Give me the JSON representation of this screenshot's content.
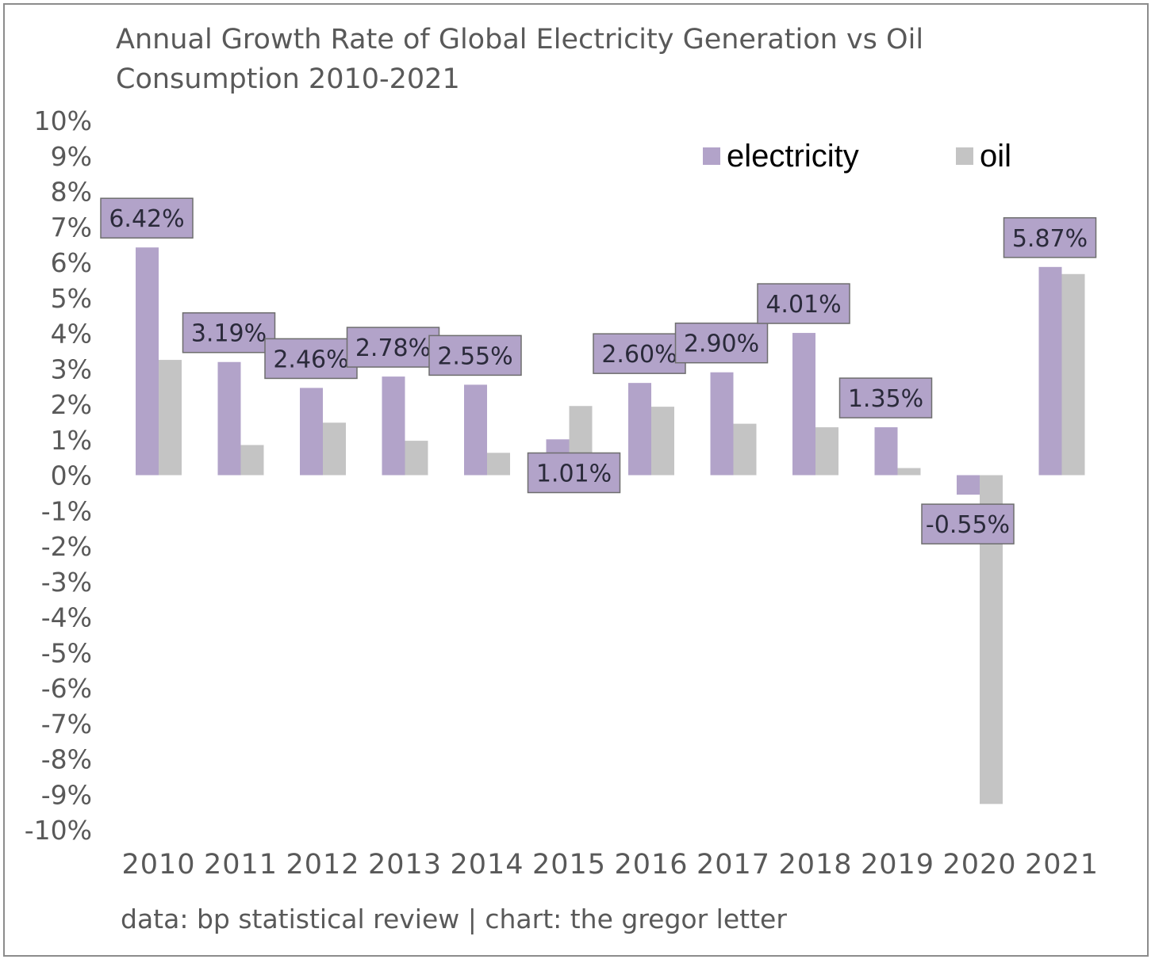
{
  "chart_data": {
    "type": "bar",
    "title_lines": [
      "Annual Growth Rate of Global Electricity Generation vs Oil",
      "Consumption 2010-2021"
    ],
    "source": "data: bp statistical review | chart: the gregor letter",
    "categories": [
      "2010",
      "2011",
      "2012",
      "2013",
      "2014",
      "2015",
      "2016",
      "2017",
      "2018",
      "2019",
      "2020",
      "2021"
    ],
    "series": [
      {
        "name": "electricity",
        "color": "#b2a3c9",
        "values": [
          6.42,
          3.19,
          2.46,
          2.78,
          2.55,
          1.01,
          2.6,
          2.9,
          4.01,
          1.35,
          -0.55,
          5.87
        ],
        "data_labels": [
          "6.42%",
          "3.19%",
          "2.46%",
          "2.78%",
          "2.55%",
          "1.01%",
          "2.60%",
          "2.90%",
          "4.01%",
          "1.35%",
          "-0.55%",
          "5.87%"
        ]
      },
      {
        "name": "oil",
        "color": "#c4c4c4",
        "values": [
          3.25,
          0.85,
          1.48,
          0.97,
          0.63,
          1.95,
          1.93,
          1.45,
          1.35,
          0.2,
          -9.27,
          5.67
        ]
      }
    ],
    "ylim": [
      -10,
      10
    ],
    "yticks": [
      "10%",
      "9%",
      "8%",
      "7%",
      "6%",
      "5%",
      "4%",
      "3%",
      "2%",
      "1%",
      "0%",
      "-1%",
      "-2%",
      "-3%",
      "-4%",
      "-5%",
      "-6%",
      "-7%",
      "-8%",
      "-9%",
      "-10%"
    ],
    "grid": false,
    "legend_position": "top-right",
    "label_color": "#b2a3c9",
    "text_color": "#595959"
  }
}
